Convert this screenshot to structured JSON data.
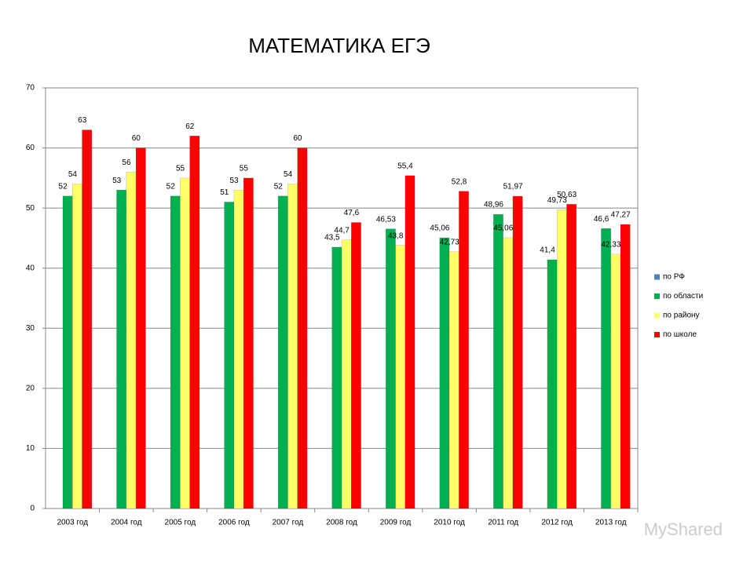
{
  "chart_data": {
    "type": "bar",
    "title": "МАТЕМАТИКА ЕГЭ",
    "categories": [
      "2003 год",
      "2004 год",
      "2005 год",
      "2006 год",
      "2007 год",
      "2008 год",
      "2009 год",
      "2010 год",
      "2011 год",
      "2012 год",
      "2013 год"
    ],
    "series": [
      {
        "name": "по РФ",
        "color": "#4f81bd",
        "values": [
          null,
          null,
          null,
          null,
          null,
          null,
          null,
          null,
          null,
          null,
          null
        ]
      },
      {
        "name": "по области",
        "color": "#00b050",
        "values": [
          52,
          53,
          52,
          51,
          52,
          43.5,
          46.53,
          45.06,
          48.96,
          41.4,
          46.6
        ],
        "value_labels": [
          "52",
          "53",
          "52",
          "51",
          "52",
          "43,5",
          "46,53",
          "45,06",
          "48,96",
          "41,4",
          "46,6"
        ]
      },
      {
        "name": "по району",
        "color": "#ffff66",
        "values": [
          54,
          56,
          55,
          53,
          54,
          44.7,
          43.8,
          42.73,
          45.06,
          49.73,
          42.33
        ],
        "value_labels": [
          "54",
          "56",
          "55",
          "53",
          "54",
          "44,7",
          "43,8",
          "42,73",
          "45,06",
          "49,73",
          "42,33"
        ]
      },
      {
        "name": "по школе",
        "color": "#ff0000",
        "values": [
          63,
          60,
          62,
          55,
          60,
          47.6,
          55.4,
          52.8,
          51.97,
          50.63,
          47.27
        ],
        "value_labels": [
          "63",
          "60",
          "62",
          "55",
          "60",
          "47,6",
          "55,4",
          "52,8",
          "51,97",
          "50,63",
          "47,27"
        ]
      }
    ],
    "ylim": [
      0,
      70
    ],
    "yticks": [
      0,
      10,
      20,
      30,
      40,
      50,
      60,
      70
    ],
    "grid": true,
    "legend": "right"
  },
  "watermark": "MyShared"
}
